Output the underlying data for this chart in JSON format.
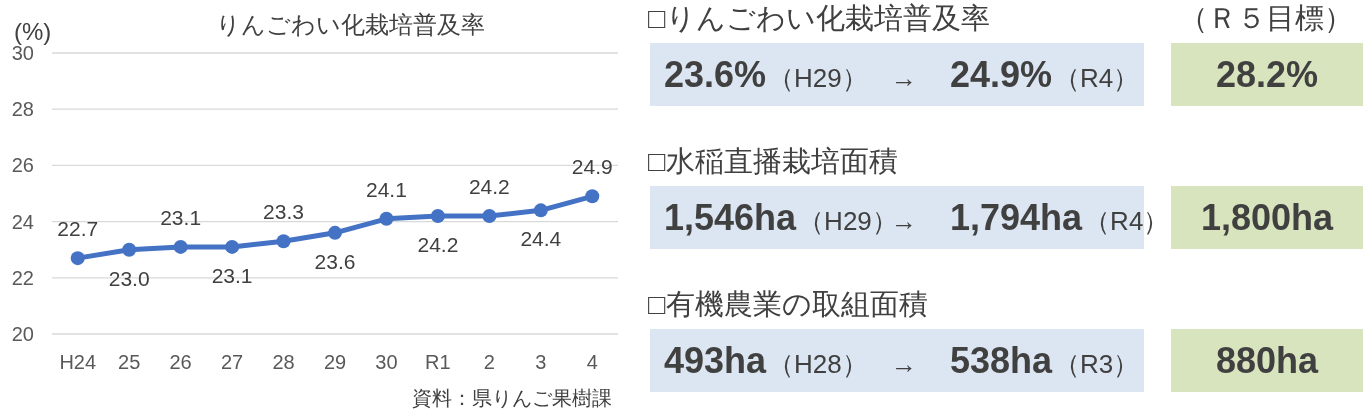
{
  "chart_data": [
    {
      "type": "line",
      "title": "りんごわい化栽培普及率",
      "ylabel": "(%)",
      "categories": [
        "H24",
        "25",
        "26",
        "27",
        "28",
        "29",
        "30",
        "R1",
        "2",
        "3",
        "4"
      ],
      "series": [
        {
          "color": "#4472c4",
          "values": [
            22.7,
            23.0,
            23.1,
            23.1,
            23.3,
            23.6,
            24.1,
            24.2,
            24.2,
            24.4,
            24.9
          ],
          "value_labels": [
            "22.7",
            "23.0",
            "23.1",
            "23.1",
            "23.3",
            "23.6",
            "24.1",
            "24.2",
            "24.2",
            "24.4",
            "24.9"
          ]
        }
      ],
      "ylim": [
        20,
        30
      ],
      "yticks": [
        20,
        22,
        24,
        26,
        28,
        30
      ],
      "grid": "y",
      "marker": "circle",
      "annotations": [
        "資料：県りんご果樹課"
      ]
    },
    {
      "type": "other",
      "title": "□りんごわい化栽培普及率",
      "subtitle": "（Ｒ５目標）",
      "annotations": [
        "23.6%",
        "（H29）",
        "→",
        "24.9%",
        "（R4）",
        "28.2%"
      ]
    },
    {
      "type": "other",
      "title": "□水稲直播栽培面積",
      "annotations": [
        "1,546ha",
        "（H29）",
        "→",
        "1,794ha",
        "（R4）",
        "1,800ha"
      ]
    },
    {
      "type": "other",
      "title": "□有機農業の取組面積",
      "annotations": [
        "493ha",
        "（H28）",
        "→",
        "538ha",
        "（R3）",
        "880ha"
      ]
    }
  ]
}
